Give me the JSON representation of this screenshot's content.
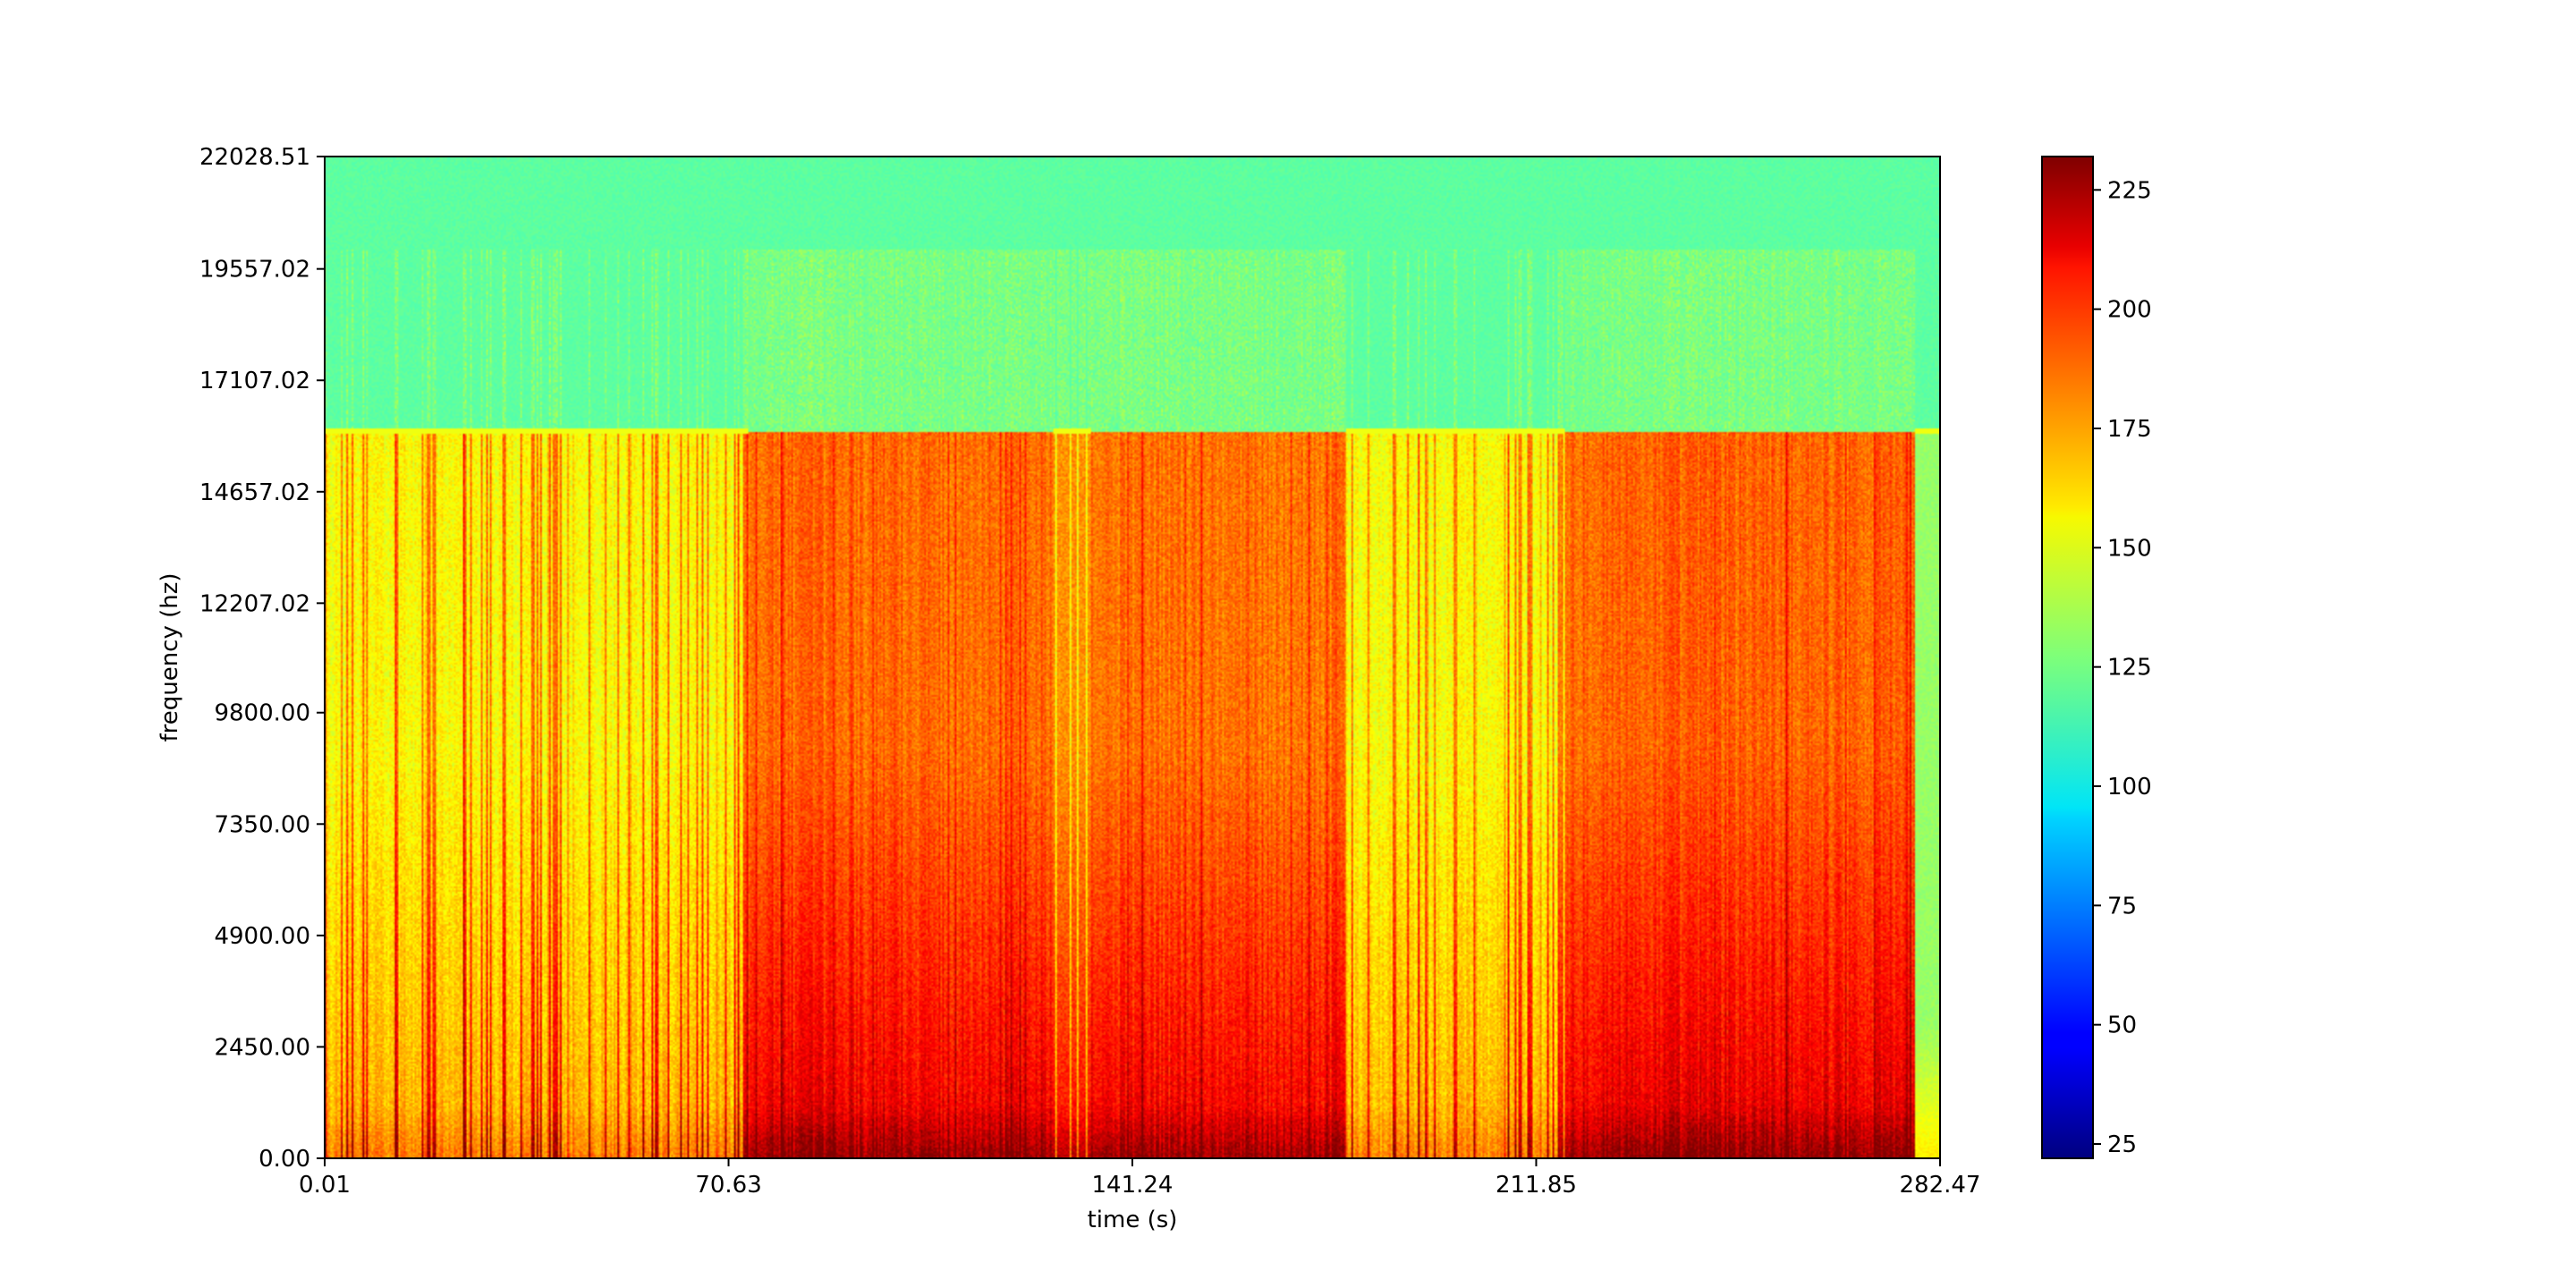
{
  "chart_data": {
    "type": "heatmap",
    "title": "",
    "xlabel": "time (s)",
    "ylabel": "frequency (hz)",
    "xlim": [
      0.01,
      282.47
    ],
    "ylim": [
      0.0,
      22028.51
    ],
    "x_ticks": [
      0.01,
      70.63,
      141.24,
      211.85,
      282.47
    ],
    "x_tick_labels": [
      "0.01",
      "70.63",
      "141.24",
      "211.85",
      "282.47"
    ],
    "y_ticks": [
      0.0,
      2450.0,
      4900.0,
      7350.0,
      9800.0,
      12207.02,
      14657.02,
      17107.02,
      19557.02,
      22028.51
    ],
    "y_tick_labels": [
      "0.00",
      "2450.00",
      "4900.00",
      "7350.00",
      "9800.00",
      "12207.02",
      "14657.02",
      "17107.02",
      "19557.02",
      "22028.51"
    ],
    "colormap": "jet",
    "colorbar": {
      "range": [
        22,
        232
      ],
      "ticks": [
        25,
        50,
        75,
        100,
        125,
        150,
        175,
        200,
        225
      ],
      "tick_labels": [
        "25",
        "50",
        "75",
        "100",
        "125",
        "150",
        "175",
        "200",
        "225"
      ]
    },
    "regions": [
      {
        "t": [
          0.01,
          74.0
        ],
        "style": "sparse",
        "level": 185
      },
      {
        "t": [
          74.0,
          127.5
        ],
        "style": "dense",
        "level": 188
      },
      {
        "t": [
          127.5,
          134.0
        ],
        "style": "mixed",
        "level": 178
      },
      {
        "t": [
          134.0,
          178.5
        ],
        "style": "dense",
        "level": 186
      },
      {
        "t": [
          178.5,
          217.0
        ],
        "style": "sparse",
        "level": 182
      },
      {
        "t": [
          217.0,
          278.0
        ],
        "style": "dense",
        "level": 190
      },
      {
        "t": [
          278.0,
          282.47
        ],
        "style": "quiet",
        "level": 140
      }
    ],
    "background_level": 120,
    "cutoff_frequency_hz": 16000,
    "legend": "none",
    "grid": false
  }
}
